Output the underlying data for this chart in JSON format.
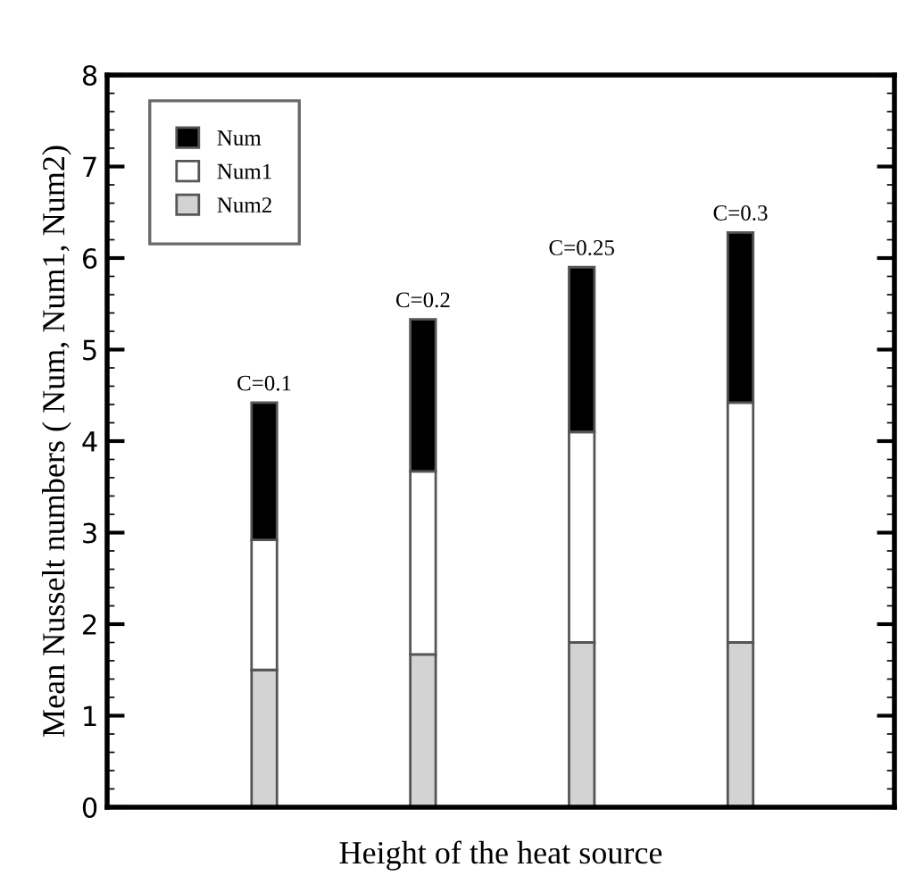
{
  "chart_data": {
    "type": "bar",
    "stacked": true,
    "xlabel": "Height of the heat source",
    "ylabel": "Mean Nusselt numbers ( Num, Num1, Num2)",
    "categories": [
      null,
      null,
      null,
      null
    ],
    "series": [
      {
        "name": "Num2",
        "color": "#d3d3d3",
        "values": [
          1.5,
          1.67,
          1.8,
          1.8
        ]
      },
      {
        "name": "Num1",
        "color": "#ffffff",
        "values": [
          1.42,
          2.0,
          2.3,
          2.62
        ]
      },
      {
        "name": "Num",
        "color": "#000000",
        "values": [
          1.5,
          1.66,
          1.8,
          1.86
        ]
      }
    ],
    "annotations": [
      {
        "text": "C=0.1",
        "y": 4.42
      },
      {
        "text": "C=0.2",
        "y": 5.33
      },
      {
        "text": "C=0.25",
        "y": 5.9
      },
      {
        "text": "C=0.3",
        "y": 6.28
      }
    ],
    "ylim": [
      0,
      8
    ],
    "yticks": [
      0,
      1,
      2,
      3,
      4,
      5,
      6,
      7,
      8
    ],
    "legend": "top left",
    "grid": false
  }
}
